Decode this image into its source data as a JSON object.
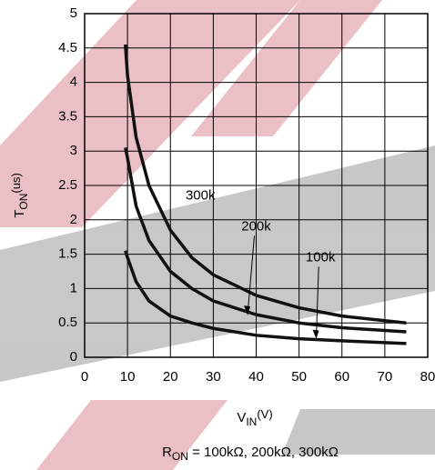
{
  "chart_data": {
    "type": "line",
    "y_label": {
      "main": "T",
      "sub": "ON",
      "unit": "(us)"
    },
    "x_label": {
      "main": "V",
      "sub": "IN",
      "unit": "(V)"
    },
    "subtitle": {
      "main": "R",
      "sub": "ON",
      "rest": " = 100kΩ, 200kΩ, 300kΩ"
    },
    "x": [
      9.5,
      10,
      12,
      15,
      20,
      25,
      30,
      40,
      50,
      60,
      75
    ],
    "series": [
      {
        "name": "300k",
        "color": "#111111",
        "values": [
          4.55,
          4.1,
          3.2,
          2.5,
          1.85,
          1.45,
          1.2,
          0.9,
          0.72,
          0.6,
          0.5
        ]
      },
      {
        "name": "200k",
        "color": "#111111",
        "values": [
          3.05,
          2.9,
          2.2,
          1.7,
          1.25,
          1.0,
          0.82,
          0.62,
          0.5,
          0.43,
          0.37
        ]
      },
      {
        "name": "100k",
        "color": "#111111",
        "values": [
          1.55,
          1.45,
          1.1,
          0.82,
          0.6,
          0.5,
          0.42,
          0.32,
          0.27,
          0.24,
          0.2
        ]
      }
    ],
    "xlim": [
      0,
      80
    ],
    "ylim": [
      0,
      5
    ],
    "xticks": [
      0,
      10,
      20,
      30,
      40,
      50,
      60,
      70,
      80
    ],
    "yticks": [
      0,
      0.5,
      1,
      1.5,
      2,
      2.5,
      3,
      3.5,
      4,
      4.5,
      5
    ],
    "grid": true
  }
}
